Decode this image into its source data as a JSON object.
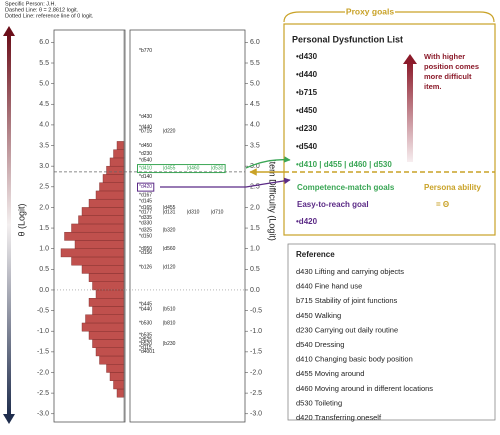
{
  "chart_data": {
    "type": "wright_map",
    "person": "Specific Person: J.H.",
    "dashed_line": {
      "label": "Dashed Line: θ = 2.8612 logit.",
      "value": 2.8612
    },
    "dotted_line": {
      "label": "Dotted Line: reference line of 0 logit.",
      "value": 0
    },
    "ylabel": "θ (Logit)",
    "y2label": "Item Difficulty (Logit)",
    "ylim": [
      -3.2,
      6.3
    ],
    "yticks": [
      {
        "value": 6,
        "label": "6.0"
      },
      {
        "value": 5.5,
        "label": "5.5"
      },
      {
        "value": 5,
        "label": "5.0"
      },
      {
        "value": 4.5,
        "label": "4.5"
      },
      {
        "value": 4,
        "label": "4.0"
      },
      {
        "value": 3.5,
        "label": "3.5"
      },
      {
        "value": 3,
        "label": "3.0"
      },
      {
        "value": 2.5,
        "label": "2.5"
      },
      {
        "value": 2,
        "label": "2.0"
      },
      {
        "value": 1.5,
        "label": "1.5"
      },
      {
        "value": 1,
        "label": "1.0"
      },
      {
        "value": 0.5,
        "label": "0.5"
      },
      {
        "value": 0,
        "label": "0.0"
      },
      {
        "value": -0.5,
        "label": "-0.5"
      },
      {
        "value": -1,
        "label": "-1.0"
      },
      {
        "value": -1.5,
        "label": "-1.5"
      },
      {
        "value": -2,
        "label": "-2.0"
      },
      {
        "value": -2.5,
        "label": "-2.5"
      },
      {
        "value": -3,
        "label": "-3.0"
      }
    ],
    "y2lim": [
      -3.2,
      6.3
    ],
    "y2ticks": [
      {
        "value": 6,
        "label": "6.0"
      },
      {
        "value": 5.5,
        "label": "5.5"
      },
      {
        "value": 5,
        "label": "5.0"
      },
      {
        "value": 4.5,
        "label": "4.5"
      },
      {
        "value": 4,
        "label": "4.0"
      },
      {
        "value": 3.5,
        "label": "3.5"
      },
      {
        "value": 3,
        "label": "3.0"
      },
      {
        "value": 2.5,
        "label": "2.5"
      },
      {
        "value": 2,
        "label": "2.0"
      },
      {
        "value": 1.5,
        "label": "1.5"
      },
      {
        "value": 1,
        "label": "1.0"
      },
      {
        "value": 0.5,
        "label": "0.5"
      },
      {
        "value": 0,
        "label": "0.0"
      },
      {
        "value": -0.5,
        "label": "-0.5"
      },
      {
        "value": -1,
        "label": "-1.0"
      },
      {
        "value": -1.5,
        "label": "-1.5"
      },
      {
        "value": -2,
        "label": "-2.0"
      },
      {
        "value": -2.5,
        "label": "-2.5"
      },
      {
        "value": -3,
        "label": "-3.0"
      }
    ],
    "bins": [
      -2.6,
      -2.4,
      -2.2,
      -2.0,
      -1.8,
      -1.6,
      -1.4,
      -1.2,
      -1.0,
      -0.8,
      -0.6,
      -0.4,
      -0.2,
      0.0,
      0.2,
      0.4,
      0.6,
      0.8,
      1.0,
      1.2,
      1.4,
      1.6,
      1.8,
      2.0,
      2.2,
      2.4,
      2.6,
      2.8,
      3.0,
      3.2,
      3.4,
      3.6
    ],
    "counts": [
      2,
      3,
      4,
      5,
      7,
      8,
      9,
      10,
      12,
      11,
      9,
      10,
      8,
      9,
      10,
      12,
      15,
      18,
      14,
      17,
      15,
      13,
      12,
      10,
      8,
      7,
      6,
      5,
      4,
      3,
      2
    ],
    "color": "#c0504d",
    "items": [
      {
        "logit": 5.8,
        "labels": [
          "*b770"
        ]
      },
      {
        "logit": 4.2,
        "labels": [
          "*d430"
        ]
      },
      {
        "logit": 3.95,
        "labels": [
          "*d440"
        ]
      },
      {
        "logit": 3.85,
        "labels": [
          "*b715",
          "|d220"
        ]
      },
      {
        "logit": 3.5,
        "labels": [
          "*d450"
        ]
      },
      {
        "logit": 3.3,
        "labels": [
          "*d230"
        ]
      },
      {
        "logit": 3.15,
        "labels": [
          "*d540"
        ]
      },
      {
        "logit": 2.95,
        "labels": [
          "*d410",
          "|d455",
          "|d460",
          "|d530"
        ],
        "color": "#3aa655"
      },
      {
        "logit": 2.75,
        "labels": [
          "*d140"
        ]
      },
      {
        "logit": 2.5,
        "labels": [
          "*d420"
        ],
        "color": "#5b2a86"
      },
      {
        "logit": 2.3,
        "labels": [
          "*d167"
        ]
      },
      {
        "logit": 2.15,
        "labels": [
          "*d145"
        ]
      },
      {
        "logit": 2.0,
        "labels": [
          "*d165",
          "|d455"
        ]
      },
      {
        "logit": 1.88,
        "labels": [
          "*d177",
          "|d131",
          "|d310",
          "|d710"
        ]
      },
      {
        "logit": 1.75,
        "labels": [
          "*d335"
        ]
      },
      {
        "logit": 1.62,
        "labels": [
          "*d330"
        ]
      },
      {
        "logit": 1.45,
        "labels": [
          "*d325",
          "|b320"
        ]
      },
      {
        "logit": 1.3,
        "labels": [
          "*d150"
        ]
      },
      {
        "logit": 1.0,
        "labels": [
          "*d950",
          "|d560"
        ]
      },
      {
        "logit": 0.9,
        "labels": [
          "*d156"
        ]
      },
      {
        "logit": 0.55,
        "labels": [
          "*b126",
          "|d120"
        ]
      },
      {
        "logit": -0.35,
        "labels": [
          "*b445"
        ]
      },
      {
        "logit": -0.47,
        "labels": [
          "*b440",
          "|b510"
        ]
      },
      {
        "logit": -0.8,
        "labels": [
          "*b530",
          "|b810"
        ]
      },
      {
        "logit": -1.1,
        "labels": [
          "*b535"
        ]
      },
      {
        "logit": -1.2,
        "labels": [
          "*d525"
        ]
      },
      {
        "logit": -1.3,
        "labels": [
          "*b520",
          "|b230"
        ]
      },
      {
        "logit": -1.4,
        "labels": [
          "*d115"
        ]
      },
      {
        "logit": -1.5,
        "labels": [
          "*d4001"
        ]
      }
    ]
  },
  "annotation": {
    "proxy_label": "Proxy goals",
    "list_title": "Personal Dysfunction List",
    "goals": [
      "•d430",
      "•d440",
      "•b715",
      "•d450",
      "•d230",
      "•d540"
    ],
    "match_goals": "•d410 | d455 | d460 | d530",
    "note": [
      "With higher",
      "position comes",
      "more difficult",
      "item."
    ],
    "competence_label": "Competence-match goals",
    "ability_label": "Persona ability",
    "easy_label": "Easy-to-reach goal",
    "equals": "= Θ",
    "easy_item": "•d420"
  },
  "reference": {
    "title": "Reference",
    "items": [
      "d430 Lifting and carrying objects",
      "d440 Fine hand use",
      "b715 Stability of joint functions",
      "d450 Walking",
      "d230 Carrying out daily routine",
      "d540 Dressing",
      "d410 Changing basic body position",
      "d455 Moving around",
      "d460 Moving around in different locations",
      "d530 Toileting",
      "d420 Transferring oneself"
    ]
  }
}
